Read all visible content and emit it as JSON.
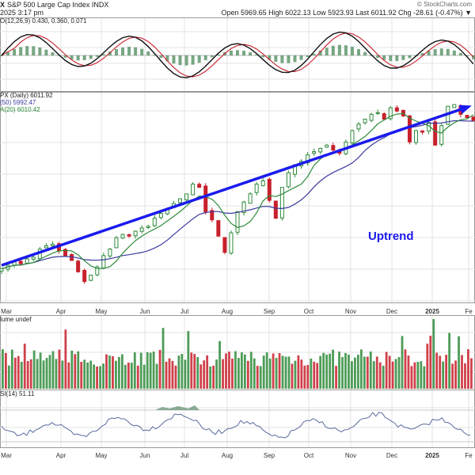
{
  "header": {
    "ticker_fragment": "X",
    "name": "S&P 500 Large Cap Index  INDX",
    "date": "2025 3:17 pm",
    "quote": "Open 5969.65  High 6022.13  Low 5923.93  Last 6011.92  Chg -28.61 (-0.47%) ▼",
    "copyright": "© StockCharts.com"
  },
  "panels": {
    "macd_label": "O(12,26,9) 0.430, 0.360, 0.071",
    "price_label": "PX (Daily) 6011.92",
    "ma50_label": "(50) 5992.47",
    "ma20_label": "A(20) 6010.42",
    "volume_label": "lume undef",
    "rsi_label": "SI(14) 51.11"
  },
  "annotation": {
    "uptrend_text": "Uptrend"
  },
  "colors": {
    "up": "#2e8b3a",
    "down": "#c8202c",
    "ma20": "#2e8b3a",
    "ma50": "#3a3aa0",
    "trendline": "#1a1aee",
    "macd_line": "#111111",
    "signal_line": "#c8202c",
    "histogram": "#4a8a5a",
    "rsi_line": "#5a6aa0",
    "grid": "#e3e3e3"
  },
  "chart_data": {
    "type": "line",
    "title": "S&P 500 Large Cap Index",
    "x_tick_labels": [
      "Mar",
      "Apr",
      "May",
      "Jun",
      "Jul",
      "Aug",
      "Sep",
      "Oct",
      "Nov",
      "Dec",
      "2025",
      "Fe"
    ],
    "series": [
      {
        "name": "PX (Daily)",
        "values": [
          5100,
          5120,
          5140,
          5130,
          5160,
          5170,
          5220,
          5240,
          5250,
          5210,
          5180,
          5150,
          5080,
          5020,
          5060,
          5110,
          5180,
          5220,
          5290,
          5310,
          5300,
          5330,
          5350,
          5360,
          5410,
          5440,
          5470,
          5500,
          5530,
          5560,
          5620,
          5600,
          5450,
          5400,
          5300,
          5200,
          5320,
          5450,
          5510,
          5560,
          5620,
          5640,
          5520,
          5410,
          5600,
          5690,
          5740,
          5760,
          5800,
          5820,
          5840,
          5860,
          5830,
          5810,
          5880,
          5950,
          5990,
          6020,
          6050,
          6060,
          6020,
          6090,
          6070,
          6040,
          5880,
          5950,
          5940,
          6000,
          5860,
          5980,
          6100,
          6110,
          6050,
          6030,
          6011.92
        ],
        "last": 6011.92
      },
      {
        "name": "(50)",
        "last": 5992.47
      },
      {
        "name": "A(20)",
        "last": 6010.42
      }
    ],
    "macd": {
      "params": "12,26,9",
      "macd": 0.43,
      "signal": 0.36,
      "histogram": 0.071
    },
    "rsi": {
      "period": 14,
      "value": 51.11
    },
    "legend": "top-left",
    "grid": true
  }
}
